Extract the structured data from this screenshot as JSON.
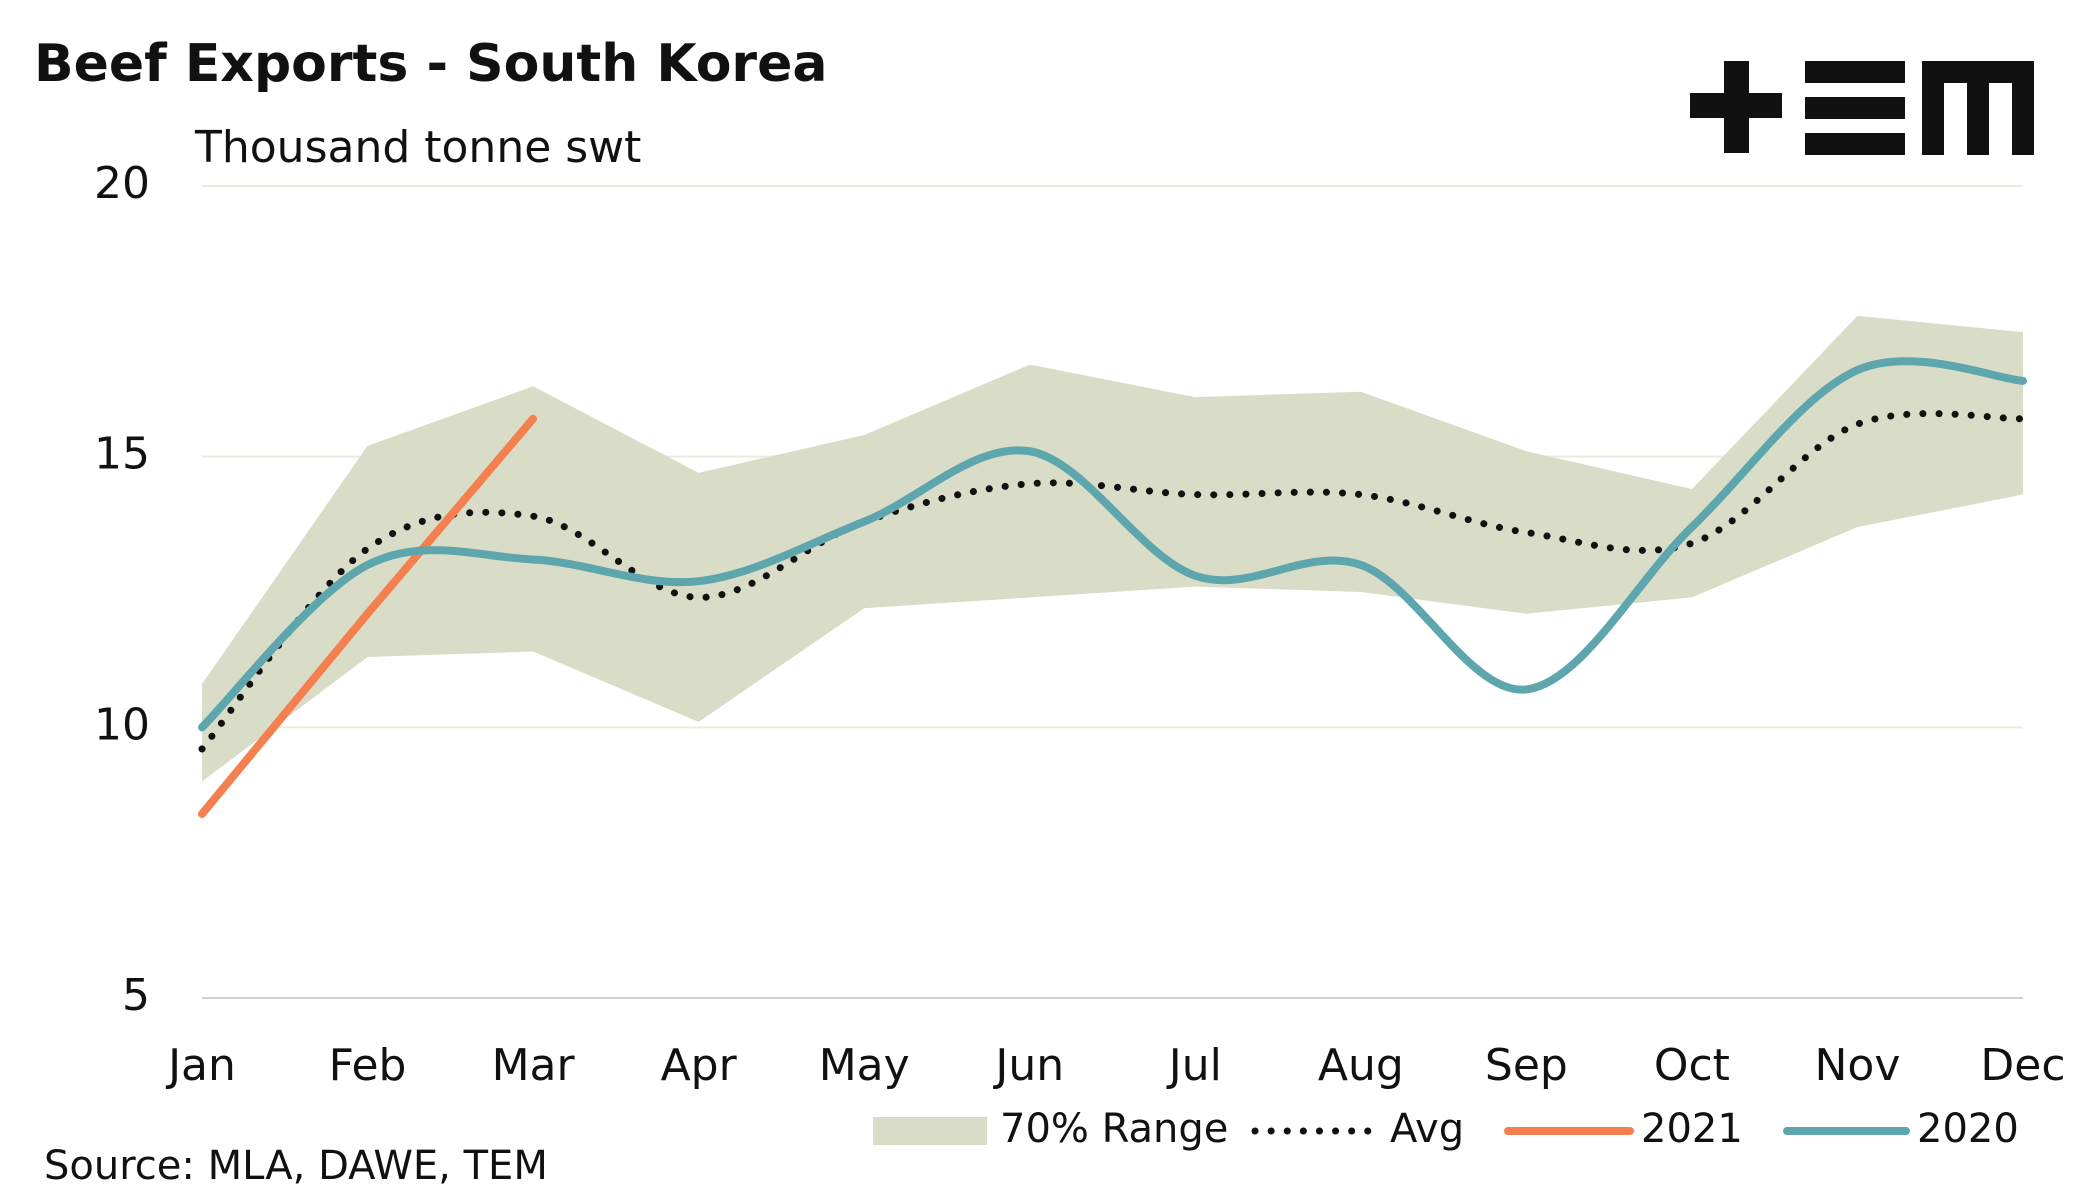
{
  "chart_data": {
    "type": "line",
    "title": "Beef Exports - South Korea",
    "y_label": "Thousand tonne swt",
    "source": "Source: MLA, DAWE, TEM",
    "categories": [
      "Jan",
      "Feb",
      "Mar",
      "Apr",
      "May",
      "Jun",
      "Jul",
      "Aug",
      "Sep",
      "Oct",
      "Nov",
      "Dec"
    ],
    "ylim": [
      5,
      20
    ],
    "yticks": [
      5,
      10,
      15,
      20
    ],
    "grid": true,
    "range": {
      "name": "70% Range",
      "color": "#d9dcc6",
      "upper": [
        10.8,
        15.2,
        16.3,
        14.7,
        15.4,
        16.7,
        16.1,
        16.2,
        15.1,
        14.4,
        17.6,
        17.3
      ],
      "lower": [
        9.0,
        11.3,
        11.4,
        10.1,
        12.2,
        12.4,
        12.6,
        12.5,
        12.1,
        12.4,
        13.7,
        14.3
      ]
    },
    "series": [
      {
        "name": "Avg",
        "color": "#111111",
        "style": "dotted",
        "smooth": true,
        "values": [
          9.6,
          13.3,
          13.9,
          12.4,
          13.8,
          14.5,
          14.3,
          14.3,
          13.6,
          13.4,
          15.6,
          15.7
        ]
      },
      {
        "name": "2021",
        "color": "#f4804f",
        "style": "solid",
        "smooth": false,
        "values": [
          8.4,
          12.1,
          15.7,
          null,
          null,
          null,
          null,
          null,
          null,
          null,
          null,
          null
        ]
      },
      {
        "name": "2020",
        "color": "#5ea6ad",
        "style": "solid",
        "smooth": true,
        "values": [
          10.0,
          13.0,
          13.1,
          12.7,
          13.8,
          15.1,
          12.8,
          13.0,
          10.7,
          13.7,
          16.6,
          16.4
        ]
      }
    ]
  }
}
